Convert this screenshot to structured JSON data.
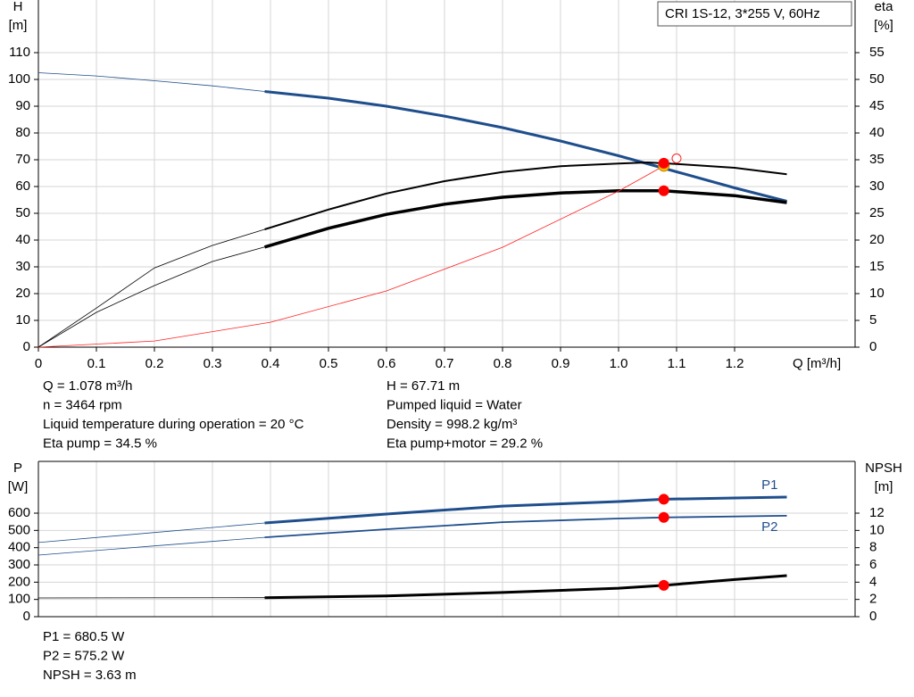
{
  "chart_data": [
    {
      "type": "line",
      "legend_box": "CRI 1S-12, 3*255 V, 60Hz",
      "y_label": [
        "H",
        "[m]"
      ],
      "y2_label": [
        "eta",
        "[%]"
      ],
      "x_label": "Q [m³/h]",
      "xlim": [
        0,
        1.4
      ],
      "xticks": [
        0,
        0.1,
        0.2,
        0.3,
        0.4,
        0.5,
        0.6,
        0.7,
        0.8,
        0.9,
        {
          "value": 1.0,
          "label": "1.0"
        },
        1.1,
        1.2
      ],
      "ylim": [
        0,
        120
      ],
      "yticks": [
        0,
        10,
        20,
        30,
        40,
        50,
        60,
        70,
        80,
        90,
        100,
        110
      ],
      "y2lim": [
        0,
        60
      ],
      "y2ticks": [
        0,
        5,
        10,
        15,
        20,
        25,
        30,
        35,
        40,
        45,
        50,
        55
      ],
      "grid": true,
      "series": [
        {
          "axis": "y",
          "color": "#1f4e8c",
          "segments": [
            {
              "width": 0.8,
              "x": [
                0,
                0.1,
                0.2,
                0.3,
                0.39
              ],
              "values": [
                102.5,
                101.3,
                99.5,
                97.6,
                95.5
              ]
            },
            {
              "width": 3,
              "x": [
                0.39,
                0.5,
                0.6,
                0.7,
                0.8,
                0.9,
                1.0,
                1.1,
                1.2,
                1.29
              ],
              "values": [
                95.5,
                93,
                90,
                86.3,
                82,
                77,
                71.5,
                65.5,
                59.5,
                54.5
              ]
            }
          ]
        },
        {
          "axis": "y2",
          "color": "#000000",
          "segments": [
            {
              "width": 0.8,
              "x": [
                0,
                0.1,
                0.2,
                0.3,
                0.39
              ],
              "values": [
                0,
                7.3,
                14.8,
                19,
                22
              ]
            },
            {
              "width": 2,
              "x": [
                0.39,
                0.5,
                0.6,
                0.7,
                0.8,
                0.9,
                1.0,
                1.05,
                1.1,
                1.2,
                1.29
              ],
              "values": [
                22,
                25.7,
                28.7,
                31,
                32.7,
                33.8,
                34.3,
                34.5,
                34.2,
                33.5,
                32.3
              ]
            }
          ]
        },
        {
          "axis": "y2",
          "color": "#000000",
          "segments": [
            {
              "width": 0.8,
              "x": [
                0,
                0.1,
                0.2,
                0.3,
                0.39
              ],
              "values": [
                0,
                6.5,
                11.5,
                16,
                18.7
              ]
            },
            {
              "width": 3.5,
              "x": [
                0.39,
                0.5,
                0.6,
                0.7,
                0.8,
                0.9,
                1.0,
                1.078,
                1.2,
                1.29
              ],
              "values": [
                18.7,
                22.2,
                24.8,
                26.7,
                28,
                28.8,
                29.2,
                29.2,
                28.3,
                27
              ]
            }
          ]
        },
        {
          "axis": "y",
          "color": "#ff2020",
          "segments": [
            {
              "width": 0.8,
              "x": [
                0,
                0.2,
                0.4,
                0.6,
                0.8,
                1.0,
                1.078
              ],
              "values": [
                0,
                2.3,
                9.3,
                21,
                37.3,
                58.3,
                67.7
              ]
            }
          ]
        }
      ],
      "points": [
        {
          "axis": "y",
          "x": 1.1,
          "value": 70.5,
          "color": "#ff2020",
          "hollow": true
        },
        {
          "axis": "y",
          "x": 1.078,
          "value": 67.71,
          "color": "#f5c400"
        },
        {
          "axis": "y",
          "x": 1.078,
          "value": 68.7,
          "color": "#ff0000"
        },
        {
          "axis": "y2",
          "x": 1.078,
          "value": 29.2,
          "color": "#ff0000"
        }
      ],
      "info": [
        [
          "Q = 1.078 m³/h",
          "n = 3464 rpm",
          "Liquid temperature during operation = 20 °C",
          "Eta pump = 34.5 %"
        ],
        [
          "H = 67.71 m",
          "Pumped liquid = Water",
          "Density = 998.2 kg/m³",
          "Eta pump+motor = 29.2 %"
        ]
      ]
    },
    {
      "type": "line",
      "y_label": [
        "P",
        "[W]"
      ],
      "y2_label": [
        "NPSH",
        "[m]"
      ],
      "xlim": [
        0,
        1.4
      ],
      "ylim": [
        0,
        900
      ],
      "yticks": [
        0,
        100,
        200,
        300,
        400,
        500,
        600
      ],
      "y2lim": [
        0,
        18
      ],
      "y2ticks": [
        0,
        2,
        4,
        6,
        8,
        10,
        12
      ],
      "grid": true,
      "series": [
        {
          "name": "P1",
          "axis": "y",
          "color": "#1f4e8c",
          "segments": [
            {
              "width": 0.8,
              "x": [
                0,
                0.2,
                0.39
              ],
              "values": [
                430,
                488,
                543
              ]
            },
            {
              "width": 3,
              "x": [
                0.39,
                0.6,
                0.8,
                1.0,
                1.078,
                1.2,
                1.29
              ],
              "values": [
                543,
                595,
                641,
                667,
                680.5,
                688,
                693
              ]
            }
          ]
        },
        {
          "name": "P2",
          "axis": "y",
          "color": "#1f4e8c",
          "segments": [
            {
              "width": 0.8,
              "x": [
                0,
                0.2,
                0.39
              ],
              "values": [
                357,
                410,
                460
              ]
            },
            {
              "width": 1.8,
              "x": [
                0.39,
                0.6,
                0.8,
                1.0,
                1.078,
                1.29
              ],
              "values": [
                460,
                507,
                548,
                569,
                575.2,
                585
              ]
            }
          ]
        },
        {
          "axis": "y2",
          "color": "#000000",
          "segments": [
            {
              "width": 0.8,
              "x": [
                0,
                0.39
              ],
              "values": [
                2.17,
                2.2
              ]
            },
            {
              "width": 3,
              "x": [
                0.39,
                0.6,
                0.8,
                1.0,
                1.078,
                1.2,
                1.29
              ],
              "values": [
                2.2,
                2.4,
                2.8,
                3.3,
                3.63,
                4.3,
                4.76
              ]
            }
          ]
        }
      ],
      "points": [
        {
          "axis": "y",
          "x": 1.078,
          "value": 680.5,
          "color": "#ff0000"
        },
        {
          "axis": "y",
          "x": 1.078,
          "value": 575.2,
          "color": "#ff0000"
        },
        {
          "axis": "y2",
          "x": 1.078,
          "value": 3.63,
          "color": "#ff0000"
        }
      ],
      "info": [
        [
          "P1 = 680.5 W",
          "P2 = 575.2 W",
          "NPSH = 3.63 m"
        ]
      ]
    }
  ]
}
